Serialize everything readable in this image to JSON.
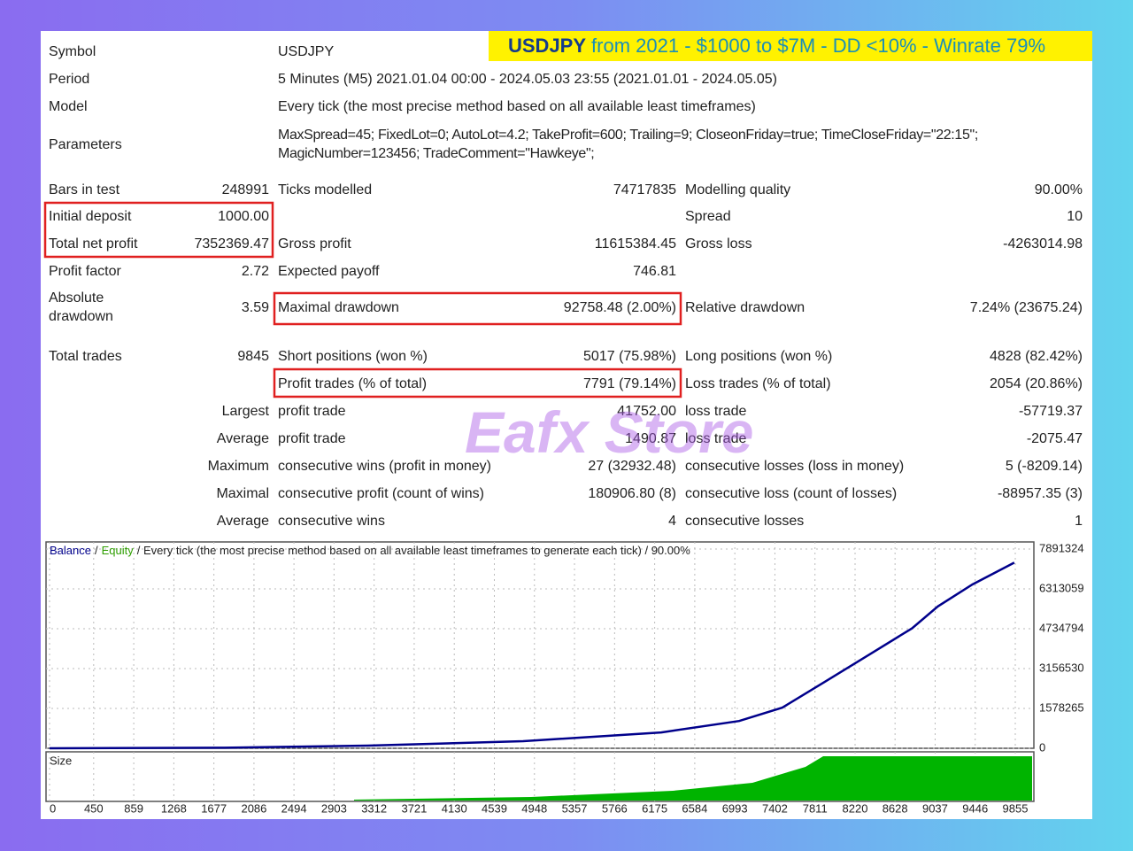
{
  "banner": {
    "symbol": "USDJPY",
    "text": "from 2021 - $1000 to $7M - DD <10% - Winrate 79%"
  },
  "info": [
    {
      "label": "Symbol",
      "value": [
        "USDJPY"
      ]
    },
    {
      "label": "Period",
      "value": [
        "5 Minutes (M5) 2021.01.04 00:00 - 2024.05.03 23:55 (2021.01.01 - 2024.05.05)"
      ]
    },
    {
      "label": "Model",
      "value": [
        "Every tick (the most precise method based on all available least timeframes)"
      ]
    },
    {
      "label": "Parameters",
      "value": [
        "MaxSpread=45; FixedLot=0; AutoLot=4.2; TakeProfit=600; Trailing=9; CloseonFriday=true; TimeCloseFriday=\"22:15\";",
        "MagicNumber=123456; TradeComment=\"Hawkeye\";"
      ]
    }
  ],
  "stats": [
    [
      "Bars in test",
      "248991",
      "Ticks modelled",
      "74717835",
      "Modelling quality",
      "90.00%"
    ],
    [
      "Initial deposit",
      "1000.00",
      null,
      null,
      "Spread",
      "10"
    ],
    [
      "Total net profit",
      "7352369.47",
      "Gross profit",
      "11615384.45",
      "Gross loss",
      "-4263014.98"
    ],
    [
      "Profit factor",
      "2.72",
      "Expected payoff",
      "746.81",
      null,
      null
    ],
    [
      "Absolute drawdown",
      "3.59",
      "Maximal drawdown",
      "92758.48 (2.00%)",
      "Relative drawdown",
      "7.24% (23675.24)"
    ],
    [
      "Total trades",
      "9845",
      "Short positions (won %)",
      "5017 (75.98%)",
      "Long positions (won %)",
      "4828 (82.42%)"
    ],
    [
      null,
      null,
      "Profit trades (% of total)",
      "7791 (79.14%)",
      "Loss trades (% of total)",
      "2054 (20.86%)"
    ],
    [
      null,
      "Largest",
      "profit trade",
      "41752.00",
      "loss trade",
      "-57719.37"
    ],
    [
      null,
      "Average",
      "profit trade",
      "1490.87",
      "loss trade",
      "-2075.47"
    ],
    [
      null,
      "Maximum",
      "consecutive wins (profit in money)",
      "27 (32932.48)",
      "consecutive losses (loss in money)",
      "5 (-8209.14)"
    ],
    [
      null,
      "Maximal",
      "consecutive profit (count of wins)",
      "180906.80 (8)",
      "consecutive loss (count of losses)",
      "-88957.35 (3)"
    ],
    [
      null,
      "Average",
      "consecutive wins",
      "4",
      "consecutive losses",
      "1"
    ]
  ],
  "watermark": "Eafx Store",
  "chart_data": {
    "type": "line",
    "legend": [
      {
        "text": "Balance",
        "color": "#00008b"
      },
      {
        "text": "/",
        "color": "#222222"
      },
      {
        "text": "Equity",
        "color": "#2e9e00"
      },
      {
        "text": "/ Every tick (the most precise method based on all available least timeframes to generate each tick) / 90.00%",
        "color": "#222222"
      }
    ],
    "x": [
      0,
      1746,
      3245,
      4832,
      6243,
      7037,
      7478,
      7919,
      8360,
      8801,
      9065,
      9418,
      9845
    ],
    "values": [
      1000,
      20000,
      105000,
      279000,
      628000,
      1080000,
      1610000,
      2650000,
      3700000,
      4750000,
      5620000,
      6490000,
      7353369
    ],
    "color": "#00008b",
    "xlim": [
      0,
      9855
    ],
    "ylim": [
      0,
      7891324
    ],
    "yticks": [
      0,
      1578265,
      3156530,
      4734794,
      6313059,
      7891324
    ],
    "xticks": [
      0,
      450,
      859,
      1268,
      1677,
      2086,
      2494,
      2903,
      3312,
      3721,
      4130,
      4539,
      4948,
      5357,
      5766,
      6175,
      6584,
      6993,
      7402,
      7811,
      8220,
      8628,
      9037,
      9446,
      9855
    ],
    "grid": true,
    "size_label": "Size",
    "size_color": "#00b400"
  }
}
